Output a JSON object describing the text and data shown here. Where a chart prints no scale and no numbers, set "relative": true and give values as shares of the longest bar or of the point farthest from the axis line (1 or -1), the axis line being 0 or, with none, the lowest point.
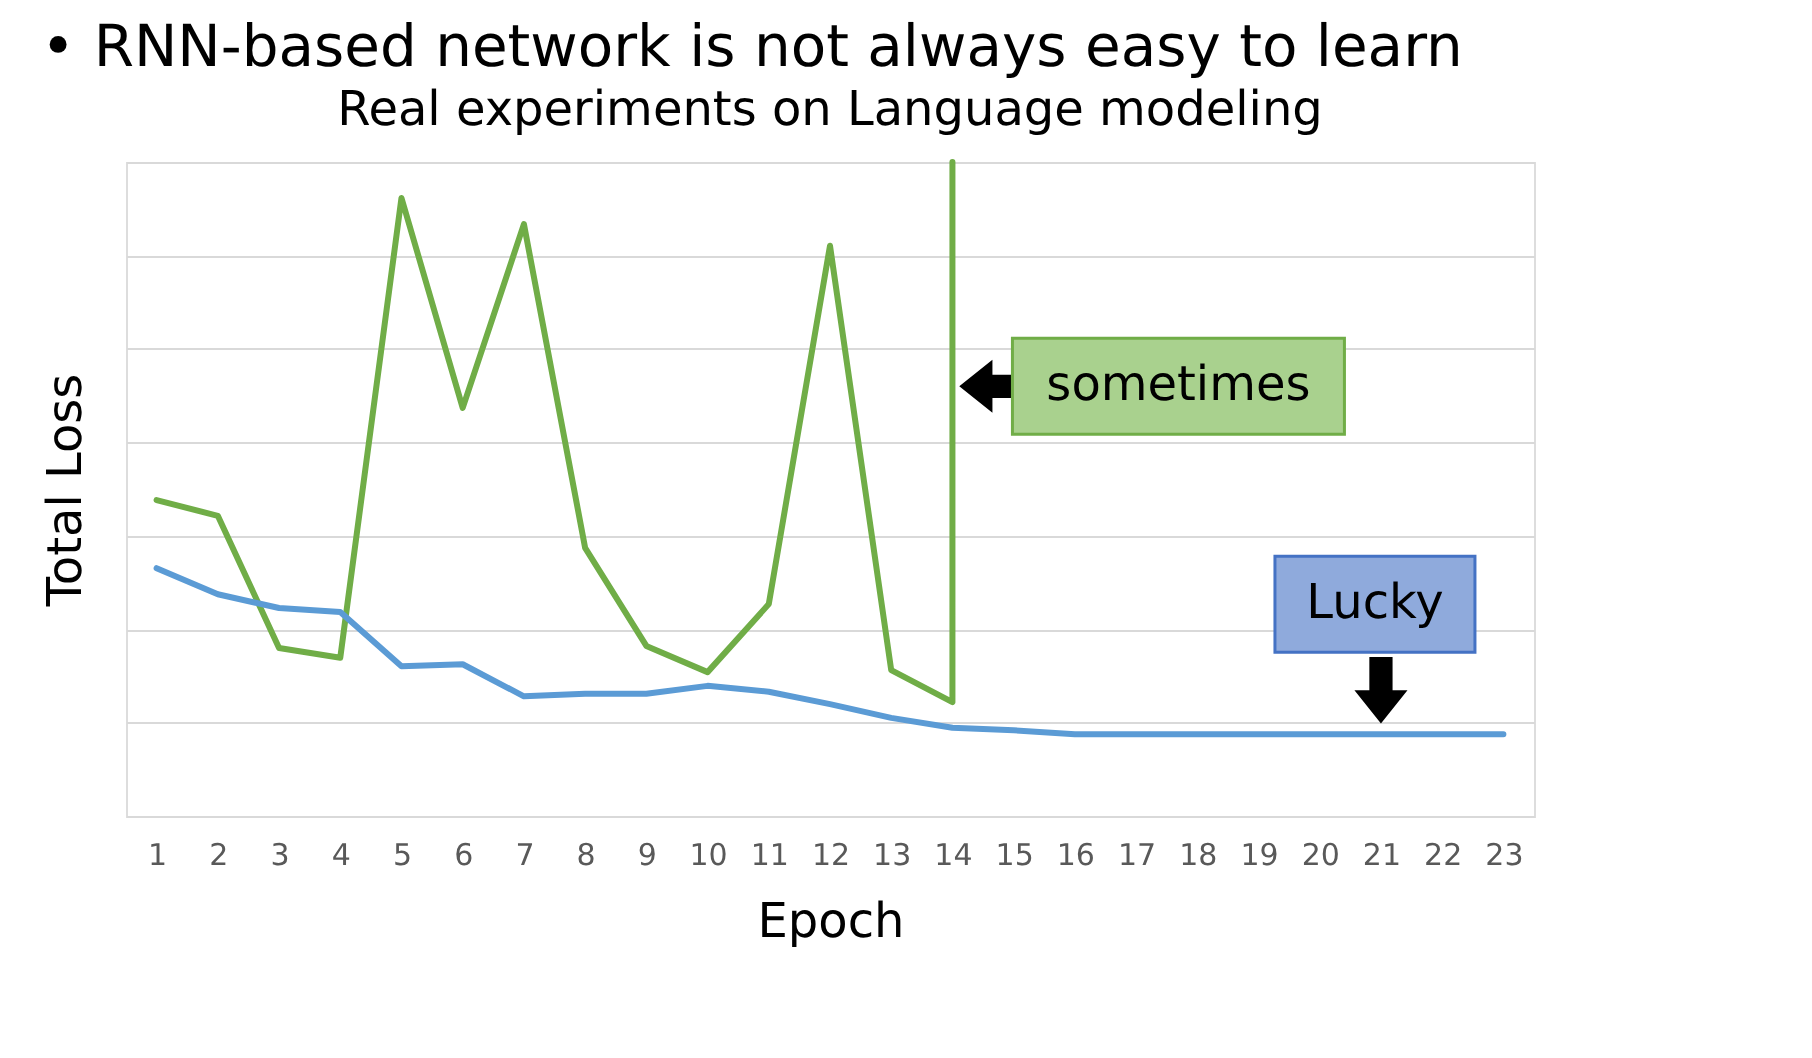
{
  "chart_data": {
    "type": "line",
    "title": "• RNN-based network is not always easy to learn",
    "subtitle": "Real experiments on Language modeling",
    "xlabel": "Epoch",
    "ylabel": "Total Loss",
    "relative": true,
    "grid": "y",
    "xlim": [
      0.5,
      23.5
    ],
    "xticks": [
      1,
      2,
      3,
      4,
      5,
      6,
      7,
      8,
      9,
      10,
      11,
      12,
      13,
      14,
      15,
      16,
      17,
      18,
      19,
      20,
      21,
      22,
      23
    ],
    "series": [
      {
        "color": "#70ad47",
        "x": [
          1,
          2,
          3,
          4,
          5,
          6,
          7,
          8,
          9,
          10,
          11,
          12,
          13,
          14,
          14
        ],
        "values": [
          0.483,
          0.459,
          0.257,
          0.242,
          0.945,
          0.624,
          0.905,
          0.41,
          0.26,
          0.22,
          0.324,
          0.872,
          0.223,
          0.174,
          1.0
        ]
      },
      {
        "color": "#5b9bd5",
        "x": [
          1,
          2,
          3,
          4,
          5,
          6,
          7,
          8,
          9,
          10,
          11,
          12,
          13,
          14,
          15,
          16,
          17,
          18,
          19,
          20,
          21,
          22,
          23
        ],
        "values": [
          0.379,
          0.339,
          0.318,
          0.312,
          0.229,
          0.232,
          0.183,
          0.187,
          0.187,
          0.199,
          0.19,
          0.171,
          0.15,
          0.135,
          0.131,
          0.125,
          0.125,
          0.125,
          0.125,
          0.125,
          0.125,
          0.125,
          0.125
        ]
      }
    ],
    "annotations": [
      {
        "text": "sometimes",
        "x": 14,
        "y": 0.657
      },
      {
        "text": "Lucky",
        "x": 21,
        "y": 0.125
      }
    ]
  }
}
